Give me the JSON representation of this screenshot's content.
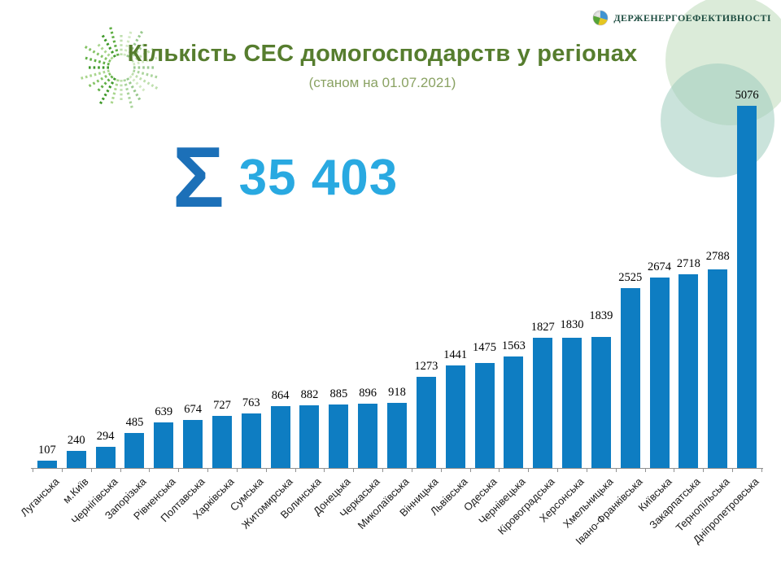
{
  "header": {
    "title": "Кількість СЕС домогосподарств у регіонах",
    "subtitle": "(станом на 01.07.2021)"
  },
  "brand": {
    "name": "Держенергоефективності",
    "icon": "sphere-logo-icon"
  },
  "summary": {
    "sigma": "Σ",
    "total": "35 403"
  },
  "colors": {
    "title_green": "#567d2e",
    "subtitle_green": "#8aa263",
    "sigma_blue": "#1c70b8",
    "total_blue": "#29a9e1",
    "bar_blue": "#0e7dc2",
    "brand_dark_green": "#1f4e42",
    "axis_gray": "#8f8f8f"
  },
  "chart_data": {
    "type": "bar",
    "title": "Кількість СЕС домогосподарств у регіонах",
    "subtitle": "(станом на 01.07.2021)",
    "categories": [
      "Луганська",
      "м.Київ",
      "Чернігівська",
      "Запорізька",
      "Рівненська",
      "Полтавська",
      "Харківська",
      "Сумська",
      "Житомирська",
      "Волинська",
      "Донецька",
      "Черкаська",
      "Миколаївська",
      "Вінницька",
      "Львівська",
      "Одеська",
      "Чернівецька",
      "Кіровоградська",
      "Херсонська",
      "Хмельницька",
      "Івано-Франківська",
      "Київська",
      "Закарпатська",
      "Тернопільська",
      "Дніпропетровська"
    ],
    "values": [
      107,
      240,
      294,
      485,
      639,
      674,
      727,
      763,
      864,
      882,
      885,
      896,
      918,
      1273,
      1441,
      1475,
      1563,
      1827,
      1830,
      1839,
      2525,
      2674,
      2718,
      2788,
      5076
    ],
    "total": 35403,
    "annotations": [
      "Σ 35 403"
    ],
    "bar_color": "#0e7dc2",
    "ylim": [
      0,
      5200
    ],
    "grid": false,
    "legend": "none",
    "value_labels": true,
    "x_label_rotation": -45,
    "label_dy": [
      0,
      0,
      0,
      0,
      0,
      0,
      0,
      0,
      0,
      0,
      0,
      0,
      0,
      0,
      0,
      -6,
      0,
      0,
      -3,
      -13,
      0,
      0,
      0,
      -3,
      0
    ]
  }
}
